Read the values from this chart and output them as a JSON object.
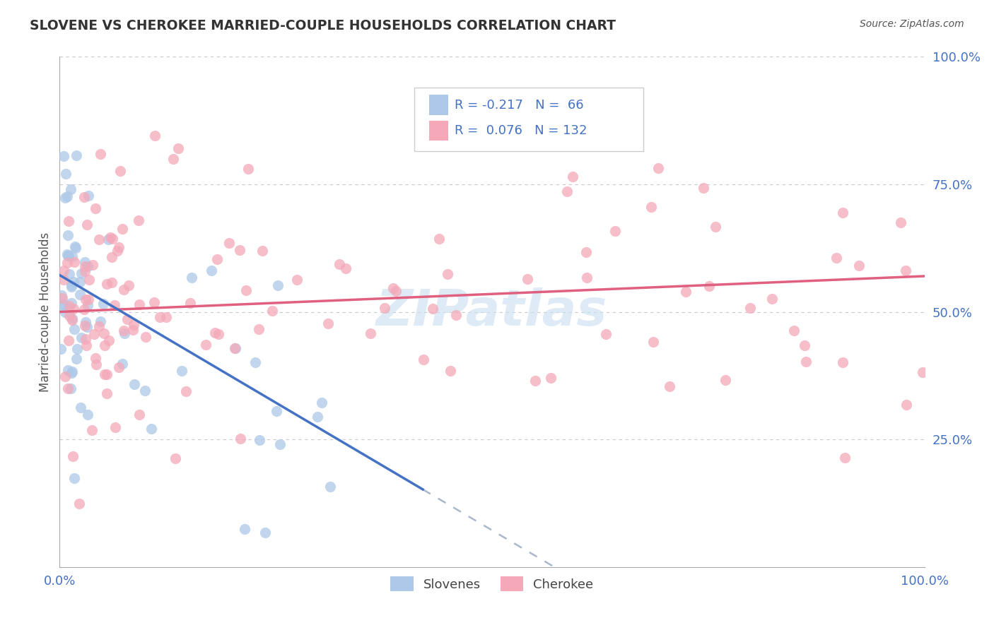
{
  "title": "SLOVENE VS CHEROKEE MARRIED-COUPLE HOUSEHOLDS CORRELATION CHART",
  "source": "Source: ZipAtlas.com",
  "ylabel": "Married-couple Households",
  "color_slovene": "#adc8e8",
  "color_cherokee": "#f4a8b8",
  "background_color": "#ffffff",
  "grid_color": "#c8c8d0",
  "line_blue": "#4472c4",
  "line_pink": "#e06080",
  "line_dash": "#aab8cc",
  "watermark_color": "#c8dff0",
  "tick_color": "#4472c4",
  "title_color": "#333333",
  "ylabel_color": "#555555",
  "source_color": "#555555"
}
